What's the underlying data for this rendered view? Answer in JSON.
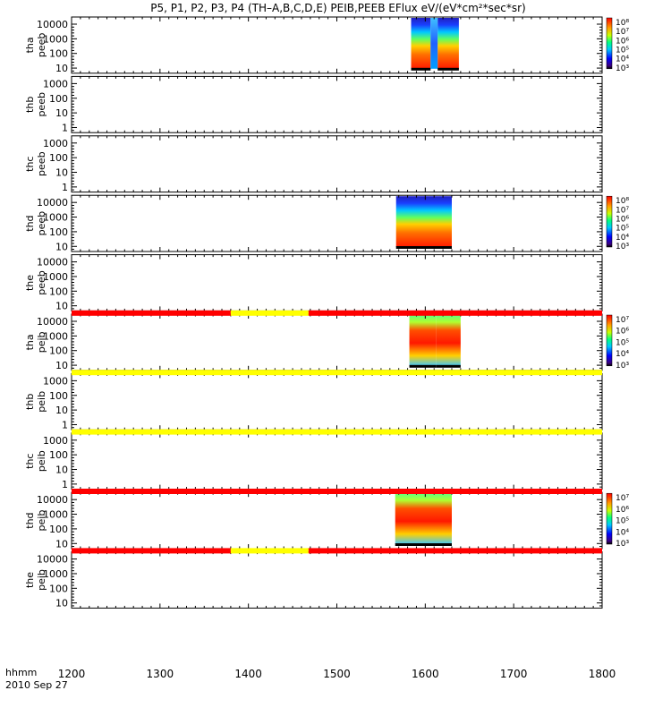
{
  "title": "P5, P1, P2, P3, P4 (TH–A,B,C,D,E) PEIB,PEEB EFlux eV/(eV*cm²*sec*sr)",
  "footer": {
    "time_label": "hhmm",
    "date_label": "2010 Sep 27"
  },
  "colors": {
    "red": "#ff0000",
    "yellow": "#ffff00",
    "black": "#000000"
  },
  "chart_data": {
    "type": "heatmap",
    "x_axis": {
      "range": [
        1200,
        1800
      ],
      "ticks": [
        1200,
        1300,
        1400,
        1500,
        1600,
        1700,
        1800
      ],
      "unit": "hhmm"
    },
    "panels": [
      {
        "probe": "tha",
        "product": "peeb",
        "ylabels": [
          "tha",
          "peeb"
        ],
        "yticks": [
          "10000",
          "1000",
          "100",
          "10"
        ],
        "data_segments": [
          [
            1584,
            1606
          ],
          [
            1614,
            1638
          ]
        ],
        "gap_segment": [
          1606,
          1614
        ],
        "colorbar": [
          "10⁸",
          "10⁷",
          "10⁶",
          "10⁵",
          "10⁴",
          "10³"
        ]
      },
      {
        "probe": "thb",
        "product": "peeb",
        "ylabels": [
          "thb",
          "peeb"
        ],
        "yticks": [
          "1000",
          "100",
          "10",
          "1"
        ],
        "data_segments": [],
        "colorbar": []
      },
      {
        "probe": "thc",
        "product": "peeb",
        "ylabels": [
          "thc",
          "peeb"
        ],
        "yticks": [
          "1000",
          "100",
          "10",
          "1"
        ],
        "data_segments": [],
        "colorbar": []
      },
      {
        "probe": "thd",
        "product": "peeb",
        "ylabels": [
          "thd",
          "peeb"
        ],
        "yticks": [
          "10000",
          "1000",
          "100",
          "10"
        ],
        "data_segments": [
          [
            1567,
            1630
          ]
        ],
        "gap_segment": [],
        "colorbar": [
          "10⁸",
          "10⁷",
          "10⁶",
          "10⁵",
          "10⁴",
          "10³"
        ]
      },
      {
        "probe": "the",
        "product": "peeb",
        "ylabels": [
          "the",
          "peeb"
        ],
        "yticks": [
          "10000",
          "1000",
          "100",
          "10"
        ],
        "data_segments": [],
        "colorbar": []
      },
      {
        "probe": "tha",
        "product": "peib",
        "ylabels": [
          "tha",
          "peib"
        ],
        "yticks": [
          "10000",
          "1000",
          "100",
          "10"
        ],
        "data_segments": [
          [
            1582,
            1612
          ],
          [
            1612,
            1640
          ]
        ],
        "gap_segment": [],
        "colorbar": [
          "10⁷",
          "10⁶",
          "10⁵",
          "10⁴",
          "10³"
        ]
      },
      {
        "probe": "thb",
        "product": "peib",
        "ylabels": [
          "thb",
          "peib"
        ],
        "yticks": [
          "1000",
          "100",
          "10",
          "1"
        ],
        "data_segments": [],
        "colorbar": []
      },
      {
        "probe": "thc",
        "product": "peib",
        "ylabels": [
          "thc",
          "peib"
        ],
        "yticks": [
          "1000",
          "100",
          "10",
          "1"
        ],
        "data_segments": [],
        "colorbar": []
      },
      {
        "probe": "thd",
        "product": "peib",
        "ylabels": [
          "thd",
          "peib"
        ],
        "yticks": [
          "10000",
          "1000",
          "100",
          "10"
        ],
        "data_segments": [
          [
            1566,
            1630
          ]
        ],
        "gap_segment": [],
        "colorbar": [
          "10⁷",
          "10⁶",
          "10⁵",
          "10⁴",
          "10³"
        ]
      },
      {
        "probe": "the",
        "product": "peib",
        "ylabels": [
          "the",
          "peib"
        ],
        "yticks": [
          "10000",
          "1000",
          "100",
          "10"
        ],
        "data_segments": [],
        "colorbar": []
      }
    ],
    "mode_bars": [
      {
        "after_panel": 4,
        "segments": [
          {
            "from": 1200,
            "to": 1380,
            "color": "red"
          },
          {
            "from": 1380,
            "to": 1468,
            "color": "yellow"
          },
          {
            "from": 1468,
            "to": 1800,
            "color": "red"
          }
        ]
      },
      {
        "after_panel": 5,
        "segments": [
          {
            "from": 1200,
            "to": 1800,
            "color": "yellow"
          }
        ]
      },
      {
        "after_panel": 6,
        "segments": [
          {
            "from": 1200,
            "to": 1800,
            "color": "yellow"
          }
        ]
      },
      {
        "after_panel": 7,
        "segments": [
          {
            "from": 1200,
            "to": 1800,
            "color": "red"
          }
        ]
      },
      {
        "after_panel": 8,
        "segments": [
          {
            "from": 1200,
            "to": 1380,
            "color": "red"
          },
          {
            "from": 1380,
            "to": 1468,
            "color": "yellow"
          },
          {
            "from": 1468,
            "to": 1800,
            "color": "red"
          }
        ]
      }
    ]
  }
}
